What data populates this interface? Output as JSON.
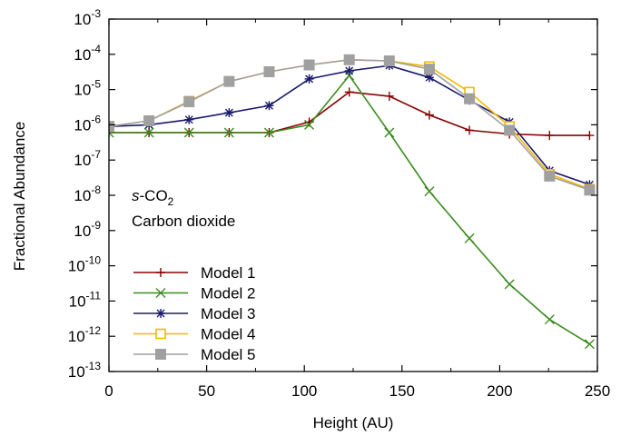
{
  "chart_data": {
    "type": "line",
    "xlabel": "Height (AU)",
    "ylabel": "Fractional Abundance",
    "xlim": [
      0,
      250
    ],
    "ylim_log10": [
      -13,
      -3
    ],
    "y_scale": "log",
    "x_ticks": [
      0,
      50,
      100,
      150,
      200,
      250
    ],
    "x_tick_labels": [
      "0",
      "50",
      "100",
      "150",
      "200",
      "250"
    ],
    "y_tick_exponents": [
      -3,
      -4,
      -5,
      -6,
      -7,
      -8,
      -9,
      -10,
      -11,
      -12,
      -13
    ],
    "y_tick_base": "10",
    "legend_position": "bottom-left",
    "annotations": {
      "species_prefix": "s",
      "species_mid": "-CO",
      "species_subscript": "2",
      "species_name": "Carbon dioxide"
    },
    "x": [
      0,
      20.5,
      41,
      61.5,
      82,
      102.5,
      123,
      143.5,
      164,
      184.5,
      205,
      225.5,
      246
    ],
    "series": [
      {
        "name": "Model 1",
        "color": "#8b0000",
        "marker": "plus",
        "values": [
          6e-07,
          6e-07,
          6e-07,
          6e-07,
          6e-07,
          1.2e-06,
          8.5e-06,
          6.5e-06,
          1.9e-06,
          7e-07,
          5.5e-07,
          5e-07,
          5e-07
        ]
      },
      {
        "name": "Model 2",
        "color": "#3a8c1e",
        "marker": "x",
        "values": [
          6e-07,
          6e-07,
          6e-07,
          6e-07,
          6e-07,
          1e-06,
          2.5e-05,
          6e-07,
          1.3e-08,
          6e-10,
          3e-11,
          3e-12,
          6e-13
        ]
      },
      {
        "name": "Model 3",
        "color": "#1a1a6e",
        "marker": "star",
        "values": [
          9e-07,
          1e-06,
          1.4e-06,
          2.2e-06,
          3.5e-06,
          2e-05,
          3.4e-05,
          4.8e-05,
          2.2e-05,
          5e-06,
          1.2e-06,
          5e-08,
          2e-08
        ]
      },
      {
        "name": "Model 4",
        "color": "#f5b800",
        "marker": "open-square",
        "values": [
          9e-07,
          1.3e-06,
          4.7e-06,
          1.7e-05,
          3.2e-05,
          5e-05,
          7e-05,
          6.5e-05,
          4.5e-05,
          8.5e-06,
          9e-07,
          4e-08,
          1.5e-08
        ]
      },
      {
        "name": "Model 5",
        "color": "#a0a0a0",
        "marker": "filled-square",
        "values": [
          9e-07,
          1.3e-06,
          4.5e-06,
          1.7e-05,
          3.2e-05,
          5e-05,
          7e-05,
          6.5e-05,
          3.8e-05,
          5.5e-06,
          7e-07,
          3.5e-08,
          1.4e-08
        ]
      }
    ]
  }
}
